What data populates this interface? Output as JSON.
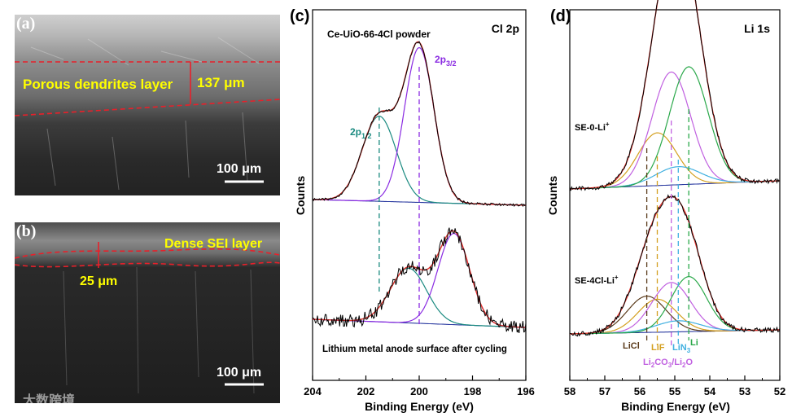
{
  "panels": {
    "a": {
      "tag": "(a)",
      "annotation": "Porous dendrites layer",
      "thickness": "137 μm",
      "scalebar": "100 μm"
    },
    "b": {
      "tag": "(b)",
      "annotation": "Dense SEI layer",
      "thickness": "25 μm",
      "scalebar": "100 μm"
    }
  },
  "watermark": "大数跨境",
  "colors": {
    "yellow_text": "#ffff00",
    "red_dash": "#e8202a",
    "envelope": "#e0302a",
    "data": "#000000",
    "purple": "#8a2be2",
    "teal": "#1a8a80",
    "green": "#2aa84a",
    "baseline": "#2a3aa0",
    "brown": "#5a3a1a",
    "gold": "#d4a020",
    "violet": "#c060e0",
    "cyan": "#40b0e0"
  },
  "chart_data": [
    {
      "type": "line",
      "panel_tag": "(c)",
      "title": "Cl 2p",
      "xlabel": "Binding Energy (eV)",
      "ylabel": "Counts",
      "xlim": [
        204,
        196
      ],
      "xticks": [
        "204",
        "202",
        "200",
        "198",
        "196"
      ],
      "top_label": "Ce-UiO-66-4Cl powder",
      "bottom_label": "Lithium metal anode surface after cycling",
      "peak_labels": [
        {
          "text": "2p",
          "sub": "1/2",
          "x": 201.5
        },
        {
          "text": "2p",
          "sub": "3/2",
          "x": 200.0
        }
      ],
      "series": [
        {
          "name": "Ce-UiO-66-4Cl powder",
          "components": [
            {
              "name": "2p1/2",
              "center": 201.5,
              "fwhm": 1.5,
              "height": 0.55
            },
            {
              "name": "2p3/2",
              "center": 200.0,
              "fwhm": 1.3,
              "height": 1.0
            }
          ]
        },
        {
          "name": "Lithium metal anode surface after cycling",
          "components": [
            {
              "name": "2p1/2",
              "center": 200.4,
              "fwhm": 1.6,
              "height": 0.6
            },
            {
              "name": "2p3/2",
              "center": 198.7,
              "fwhm": 1.4,
              "height": 1.0
            }
          ]
        }
      ]
    },
    {
      "type": "line",
      "panel_tag": "(d)",
      "title": "Li 1s",
      "xlabel": "Binding Energy (eV)",
      "ylabel": "Counts",
      "xlim": [
        58,
        52
      ],
      "xticks": [
        "58",
        "57",
        "56",
        "55",
        "54",
        "53",
        "52"
      ],
      "top_label": "SE-0-Li",
      "top_label_sup": "+",
      "bottom_label": "SE-4Cl-Li",
      "bottom_label_sup": "+",
      "legend": [
        {
          "name": "LiCl",
          "center": 55.8
        },
        {
          "name": "LiF",
          "center": 55.5
        },
        {
          "name": "Li2CO3/Li2O",
          "center": 55.1
        },
        {
          "name": "LiN3",
          "center": 54.9
        },
        {
          "name": "Li",
          "center": 54.6
        }
      ],
      "legend_text": {
        "LiCl": "LiCl",
        "LiF": "LiF",
        "LiN3_base": "LiN",
        "LiN3_sub": "3",
        "Li": "Li",
        "carb_a": "Li",
        "carb_b": "2",
        "carb_c": "CO",
        "carb_d": "3",
        "carb_e": "/Li",
        "carb_f": "2",
        "carb_g": "O"
      },
      "series": [
        {
          "name": "SE-0-Li+",
          "components": [
            {
              "name": "LiF",
              "center": 55.5,
              "fwhm": 1.3,
              "height": 0.35
            },
            {
              "name": "Li2CO3/Li2O",
              "center": 55.1,
              "fwhm": 1.3,
              "height": 0.75
            },
            {
              "name": "LiN3",
              "center": 54.9,
              "fwhm": 1.5,
              "height": 0.12
            },
            {
              "name": "Li",
              "center": 54.6,
              "fwhm": 1.3,
              "height": 0.78
            }
          ]
        },
        {
          "name": "SE-4Cl-Li+",
          "components": [
            {
              "name": "LiCl",
              "center": 55.8,
              "fwhm": 1.3,
              "height": 0.33
            },
            {
              "name": "LiF",
              "center": 55.5,
              "fwhm": 1.3,
              "height": 0.3
            },
            {
              "name": "Li2CO3/Li2O",
              "center": 55.1,
              "fwhm": 1.3,
              "height": 0.45
            },
            {
              "name": "LiN3",
              "center": 54.9,
              "fwhm": 1.5,
              "height": 0.1
            },
            {
              "name": "Li",
              "center": 54.6,
              "fwhm": 1.2,
              "height": 0.5
            }
          ]
        }
      ]
    }
  ]
}
